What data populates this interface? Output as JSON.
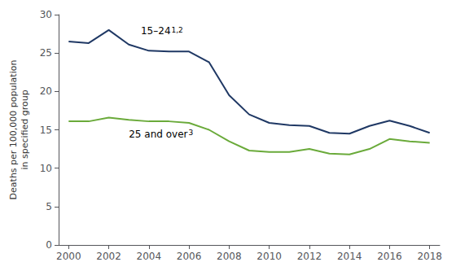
{
  "chart_data": {
    "type": "line",
    "y_label": "Deaths per 100,000 population\nin specified group",
    "x": [
      2000,
      2001,
      2002,
      2003,
      2004,
      2005,
      2006,
      2007,
      2008,
      2009,
      2010,
      2011,
      2012,
      2013,
      2014,
      2015,
      2016,
      2017,
      2018
    ],
    "series": [
      {
        "color": "#1f3864",
        "values": [
          26.5,
          26.3,
          28.0,
          26.1,
          25.3,
          25.2,
          25.2,
          23.8,
          19.5,
          17.0,
          15.9,
          15.6,
          15.5,
          14.6,
          14.5,
          15.5,
          16.2,
          15.5,
          14.6
        ]
      },
      {
        "color": "#6aaa3a",
        "values": [
          16.1,
          16.1,
          16.6,
          16.3,
          16.1,
          16.1,
          15.9,
          15.0,
          13.5,
          12.3,
          12.1,
          12.1,
          12.5,
          11.9,
          11.8,
          12.5,
          13.8,
          13.5,
          13.3
        ]
      }
    ],
    "annotations": [
      {
        "text": "15–24",
        "superscript": "1,2",
        "x": 2003.6,
        "y": 27.2
      },
      {
        "text": "25 and over",
        "superscript": "3",
        "x": 2003.0,
        "y": 13.8
      }
    ],
    "xlim": [
      1999.5,
      2018.5
    ],
    "xticks": [
      2000,
      2002,
      2004,
      2006,
      2008,
      2010,
      2012,
      2014,
      2016,
      2018
    ],
    "ylim": [
      0,
      30
    ],
    "yticks": [
      0,
      5,
      10,
      15,
      20,
      25,
      30
    ],
    "grid": false
  }
}
